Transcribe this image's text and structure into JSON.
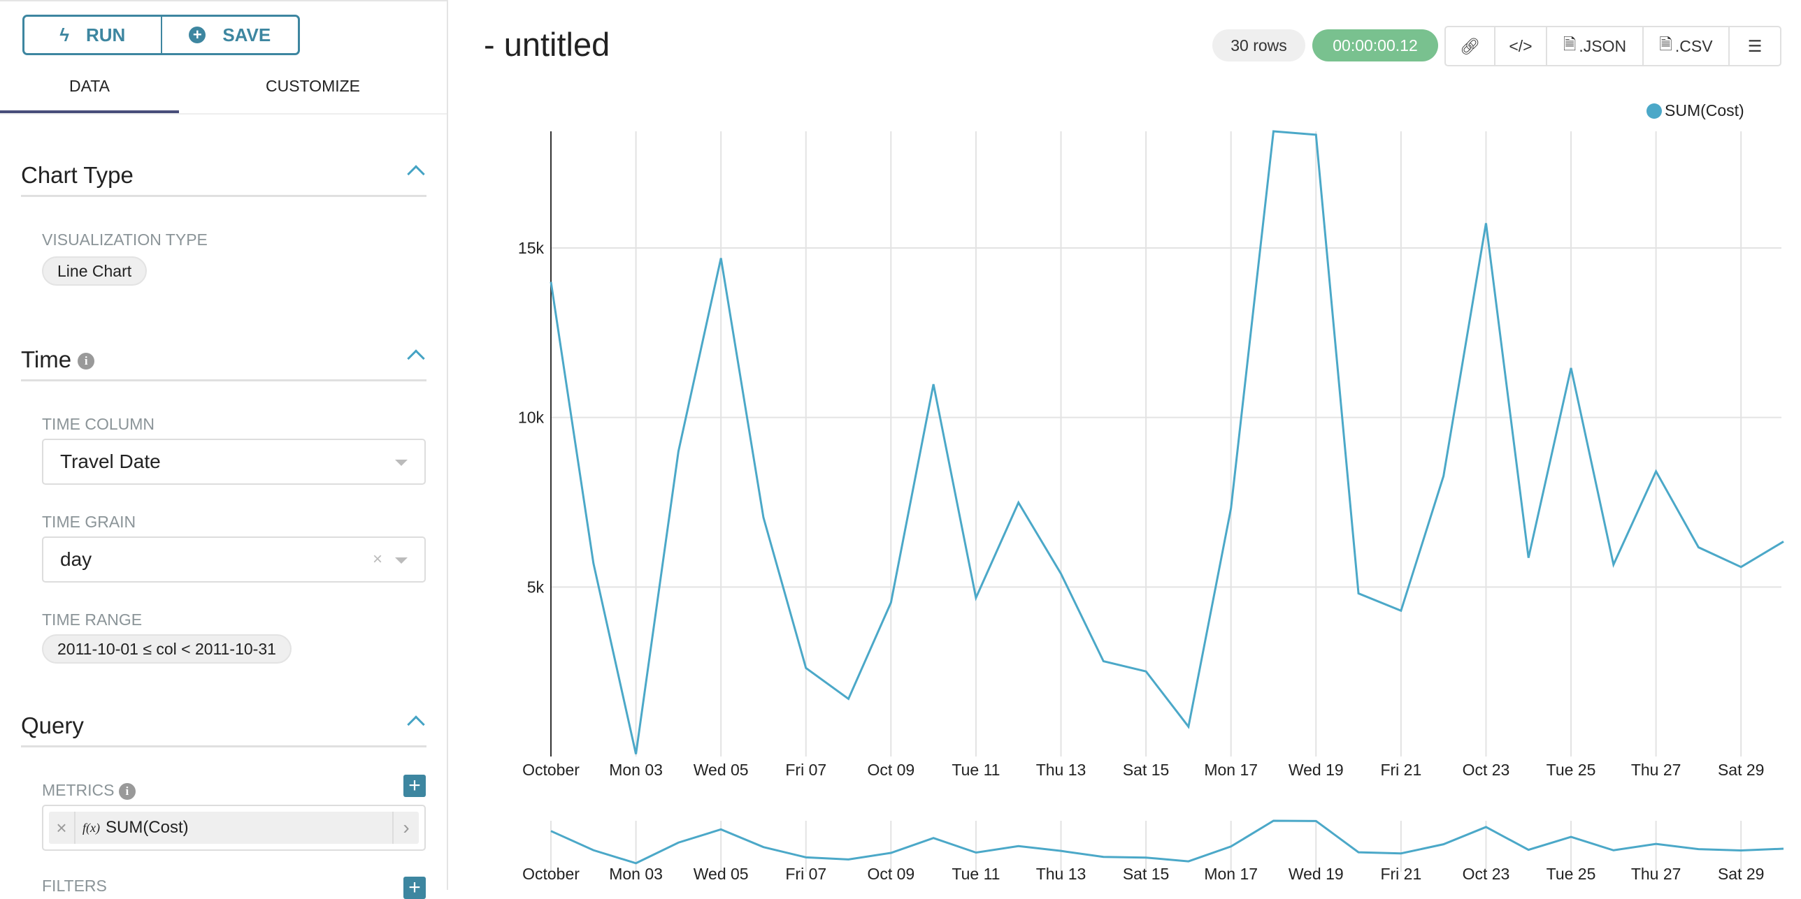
{
  "toolbar": {
    "run_label": "RUN",
    "save_label": "SAVE"
  },
  "tabs": [
    {
      "label": "DATA",
      "active": true
    },
    {
      "label": "CUSTOMIZE",
      "active": false
    }
  ],
  "sections": {
    "chart_type": {
      "title": "Chart Type",
      "viz_label": "VISUALIZATION TYPE",
      "viz_value": "Line Chart"
    },
    "time": {
      "title": "Time",
      "time_column_label": "TIME COLUMN",
      "time_column_value": "Travel Date",
      "time_grain_label": "TIME GRAIN",
      "time_grain_value": "day",
      "time_range_label": "TIME RANGE",
      "time_range_value": "2011-10-01 ≤ col < 2011-10-31"
    },
    "query": {
      "title": "Query",
      "metrics_label": "METRICS",
      "metric_value": "SUM(Cost)",
      "metric_fx": "f(x)",
      "filters_label": "FILTERS"
    }
  },
  "header": {
    "title": "- untitled",
    "rows": "30 rows",
    "duration": "00:00:00.12",
    "json_label": ".JSON",
    "csv_label": ".CSV"
  },
  "colors": {
    "accent": "#3d86a0",
    "series": "#4ba8c8",
    "success": "#79c18f"
  },
  "chart_data": {
    "type": "line",
    "legend": {
      "entries": [
        "SUM(Cost)"
      ],
      "placement": "top-right"
    },
    "x": [
      "2011-10-01",
      "2011-10-02",
      "2011-10-03",
      "2011-10-04",
      "2011-10-05",
      "2011-10-06",
      "2011-10-07",
      "2011-10-08",
      "2011-10-09",
      "2011-10-10",
      "2011-10-11",
      "2011-10-12",
      "2011-10-13",
      "2011-10-14",
      "2011-10-15",
      "2011-10-16",
      "2011-10-17",
      "2011-10-18",
      "2011-10-19",
      "2011-10-20",
      "2011-10-21",
      "2011-10-22",
      "2011-10-23",
      "2011-10-24",
      "2011-10-25",
      "2011-10-26",
      "2011-10-27",
      "2011-10-28",
      "2011-10-29",
      "2011-10-30"
    ],
    "series": [
      {
        "name": "SUM(Cost)",
        "values": [
          14000,
          5700,
          70,
          9000,
          14700,
          7050,
          2610,
          1700,
          4540,
          10980,
          4680,
          7490,
          5390,
          2810,
          2510,
          880,
          7320,
          18440,
          18340,
          4810,
          4300,
          8270,
          15730,
          5860,
          11460,
          5660,
          8410,
          6170,
          5590,
          6340
        ]
      }
    ],
    "x_tick_labels": [
      "October",
      "Mon 03",
      "Wed 05",
      "Fri 07",
      "Oct 09",
      "Tue 11",
      "Thu 13",
      "Sat 15",
      "Mon 17",
      "Wed 19",
      "Fri 21",
      "Oct 23",
      "Tue 25",
      "Thu 27",
      "Sat 29"
    ],
    "y_ticks": [
      "5k",
      "10k",
      "15k"
    ],
    "y_tick_values": [
      5000,
      10000,
      15000
    ],
    "ylim": [
      0,
      18440
    ],
    "grid": true
  }
}
